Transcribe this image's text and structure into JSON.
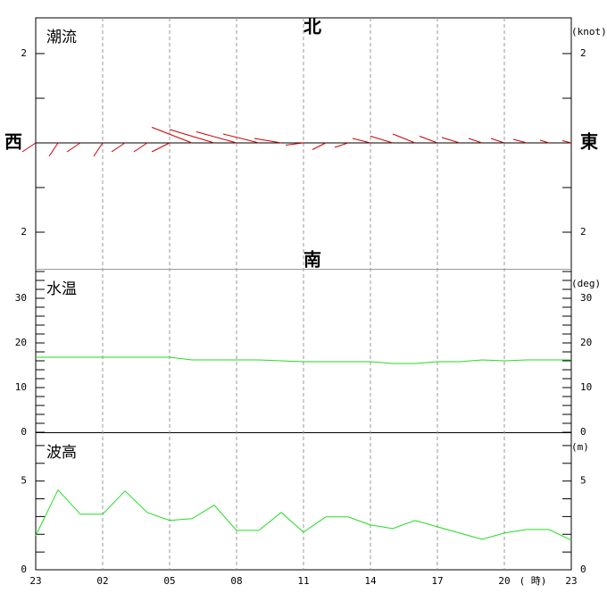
{
  "chart_data": [
    {
      "type": "vector",
      "title": "潮流",
      "unit": "(knot)",
      "directions": {
        "north": "北",
        "south": "南",
        "west": "西",
        "east": "東"
      },
      "ylim": [
        -2.8,
        2.8
      ],
      "yticks": [
        {
          "value": 2,
          "label": "2"
        },
        {
          "value": -2,
          "label": "2"
        }
      ],
      "minor_yticks": [
        1,
        0,
        -1
      ],
      "color": "#cc0000",
      "east": [
        -0.3,
        -0.2,
        -0.3,
        -0.2,
        -0.3,
        -0.3,
        -0.4,
        -0.9,
        -1.0,
        -0.9,
        -0.8,
        -0.6,
        -0.4,
        -0.3,
        -0.3,
        -0.4,
        -0.5,
        -0.5,
        -0.4,
        -0.4,
        -0.3,
        -0.3,
        -0.3,
        -0.2,
        -0.2
      ],
      "north": [
        -0.2,
        -0.3,
        -0.2,
        -0.3,
        -0.2,
        -0.2,
        -0.2,
        0.35,
        0.3,
        0.25,
        0.2,
        0.1,
        -0.05,
        -0.15,
        -0.1,
        0.1,
        0.15,
        0.2,
        0.15,
        0.12,
        0.1,
        0.1,
        0.08,
        0.06,
        0.05
      ]
    },
    {
      "type": "line",
      "title": "水温",
      "unit": "(deg)",
      "ylim": [
        0,
        36.4
      ],
      "yticks": [
        0,
        10,
        20,
        30
      ],
      "minor_yticks": [
        2,
        4,
        6,
        8,
        12,
        14,
        16,
        18,
        22,
        24,
        26,
        28,
        32,
        34,
        36
      ],
      "color": "#22dd22",
      "values": [
        16.8,
        16.8,
        16.8,
        16.8,
        16.8,
        16.8,
        16.8,
        16.2,
        16.2,
        16.2,
        16.2,
        16.0,
        15.8,
        15.8,
        15.8,
        15.8,
        15.4,
        15.4,
        15.8,
        15.8,
        16.2,
        16.0,
        16.2,
        16.2,
        16.2
      ]
    },
    {
      "type": "line",
      "title": "波高",
      "unit": "(m)",
      "ylim": [
        0,
        7.7
      ],
      "yticks": [
        0,
        5
      ],
      "minor_yticks": [
        1,
        2,
        3,
        4,
        6,
        7
      ],
      "color": "#22dd22",
      "categories": [
        "23",
        null,
        null,
        "02",
        null,
        null,
        "05",
        null,
        null,
        "08",
        null,
        null,
        "11",
        null,
        null,
        "14",
        null,
        null,
        "17",
        null,
        null,
        "20",
        null,
        null,
        "23"
      ],
      "x_label": "( 時)",
      "values": [
        1.92,
        4.5,
        3.13,
        3.13,
        4.44,
        3.23,
        2.78,
        2.88,
        3.64,
        2.22,
        2.22,
        3.23,
        2.12,
        2.98,
        2.98,
        2.53,
        2.32,
        2.78,
        2.42,
        2.07,
        1.72,
        2.07,
        2.27,
        2.27,
        1.67
      ]
    }
  ]
}
